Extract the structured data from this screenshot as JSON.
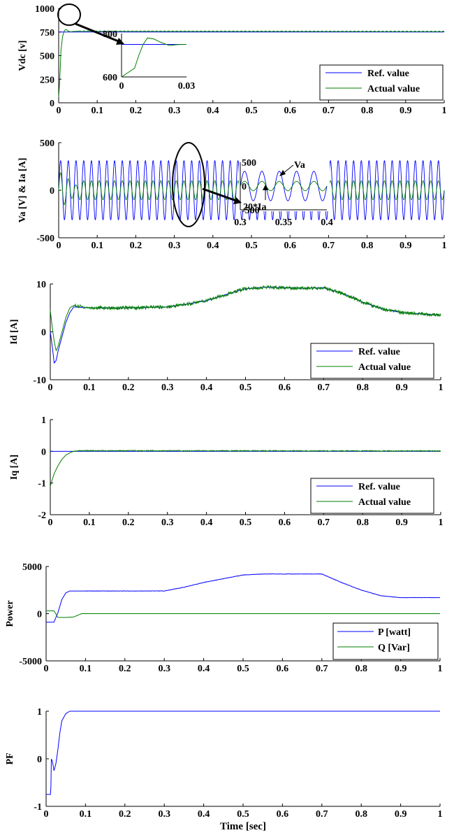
{
  "figure": {
    "xlabel": "Time [sec]",
    "colors": {
      "ref": "#0000ff",
      "actual": "#008000",
      "axis": "#000000"
    }
  },
  "chart_data": [
    {
      "type": "line",
      "ylabel": "Vdc [v]",
      "xlim": [
        0,
        1
      ],
      "ylim": [
        0,
        1000
      ],
      "xticks": [
        "0",
        "0.1",
        "0.2",
        "0.3",
        "0.4",
        "0.5",
        "0.6",
        "0.7",
        "0.8",
        "0.9",
        "1"
      ],
      "yticks": [
        "0",
        "250",
        "500",
        "750",
        "1000"
      ],
      "legend": {
        "position": "bottom-right",
        "entries": [
          "Ref. value",
          "Actual value"
        ]
      },
      "series": [
        {
          "name": "Ref. value",
          "x": [
            0,
            1
          ],
          "y": [
            750,
            750
          ]
        },
        {
          "name": "Actual value",
          "x": [
            0,
            0.003,
            0.006,
            0.01,
            0.015,
            0.02,
            0.025,
            0.03,
            0.04,
            0.05,
            1
          ],
          "y": [
            60,
            250,
            560,
            700,
            770,
            775,
            760,
            752,
            756,
            758,
            755
          ]
        }
      ],
      "inset": {
        "xlim": [
          0,
          0.03
        ],
        "ylim": [
          600,
          800
        ],
        "xticks": [
          "0",
          "0.03"
        ],
        "yticks": [
          "600",
          "800"
        ],
        "ref_y": 750,
        "actual": {
          "x": [
            0,
            0.006,
            0.008,
            0.01,
            0.012,
            0.015,
            0.018,
            0.022,
            0.026,
            0.03
          ],
          "y": [
            600,
            640,
            700,
            750,
            780,
            775,
            760,
            745,
            749,
            750
          ]
        }
      }
    },
    {
      "type": "line",
      "ylabel": "Va [V] & Ia [A]",
      "xlim": [
        0,
        1
      ],
      "ylim": [
        -500,
        500
      ],
      "xticks": [
        "0",
        "0.1",
        "0.2",
        "0.3",
        "0.4",
        "0.5",
        "0.6",
        "0.7",
        "0.8",
        "0.9",
        "1"
      ],
      "yticks": [
        "-500",
        "0",
        "500"
      ],
      "series": [
        {
          "name": "Va",
          "type": "sinusoid",
          "amplitude": 311,
          "frequency_hz": 50
        },
        {
          "name": "20*Ia",
          "type": "sinusoid",
          "amplitude": 100,
          "frequency_hz": 50
        }
      ],
      "inset": {
        "xlim": [
          0.3,
          0.4
        ],
        "ylim": [
          -500,
          500
        ],
        "xticks": [
          "0.3",
          "0.35",
          "0.4"
        ],
        "yticks": [
          "-500",
          "0",
          "500"
        ],
        "annotations": [
          "Va",
          "20*Ia"
        ]
      }
    },
    {
      "type": "line",
      "ylabel": "Id [A]",
      "xlim": [
        0,
        1
      ],
      "ylim": [
        -10,
        10
      ],
      "xticks": [
        "0",
        "0.1",
        "0.2",
        "0.3",
        "0.4",
        "0.5",
        "0.6",
        "0.7",
        "0.8",
        "0.9",
        "1"
      ],
      "yticks": [
        "-10",
        "0",
        "10"
      ],
      "legend": {
        "position": "bottom-right",
        "entries": [
          "Ref. value",
          "Actual value"
        ]
      },
      "series": [
        {
          "name": "Ref. value",
          "x": [
            0,
            0.005,
            0.01,
            0.015,
            0.02,
            0.03,
            0.04,
            0.05,
            0.06,
            0.1,
            0.2,
            0.3,
            0.35,
            0.4,
            0.45,
            0.5,
            0.55,
            0.6,
            0.65,
            0.7,
            0.75,
            0.8,
            0.85,
            0.9,
            1
          ],
          "y": [
            0,
            -3,
            -6.5,
            -6,
            -4,
            -1,
            2,
            4,
            5.2,
            5,
            5,
            5.2,
            5.8,
            6.5,
            7.8,
            9,
            9.3,
            9.2,
            9.1,
            9.2,
            8,
            6.2,
            4.8,
            4,
            3.5
          ]
        },
        {
          "name": "Actual value",
          "x": [
            0,
            0.005,
            0.01,
            0.015,
            0.02,
            0.03,
            0.04,
            0.05,
            0.06,
            0.1,
            0.2,
            0.3,
            0.35,
            0.4,
            0.45,
            0.5,
            0.55,
            0.6,
            0.65,
            0.7,
            0.75,
            0.8,
            0.85,
            0.9,
            1
          ],
          "y": [
            4.5,
            1,
            -2,
            -4,
            -3,
            0,
            3,
            5,
            5.5,
            5,
            5,
            5.2,
            5.8,
            6.5,
            7.8,
            9,
            9.3,
            9.2,
            9.1,
            9.2,
            8,
            6.2,
            4.8,
            4,
            3.5
          ]
        }
      ]
    },
    {
      "type": "line",
      "ylabel": "Iq [A]",
      "xlim": [
        0,
        1
      ],
      "ylim": [
        -2,
        1
      ],
      "xticks": [
        "0",
        "0.1",
        "0.2",
        "0.3",
        "0.4",
        "0.5",
        "0.6",
        "0.7",
        "0.8",
        "0.9",
        "1"
      ],
      "yticks": [
        "-2",
        "-1",
        "0",
        "1"
      ],
      "legend": {
        "position": "bottom-right",
        "entries": [
          "Ref. value",
          "Actual value"
        ]
      },
      "series": [
        {
          "name": "Ref. value",
          "x": [
            0,
            1
          ],
          "y": [
            0,
            0
          ]
        },
        {
          "name": "Actual value",
          "x": [
            0,
            0.005,
            0.01,
            0.02,
            0.03,
            0.04,
            0.05,
            0.06,
            0.08,
            1
          ],
          "y": [
            -1.1,
            -0.9,
            -0.7,
            -0.45,
            -0.25,
            -0.12,
            -0.05,
            0,
            0.02,
            0.01
          ]
        }
      ]
    },
    {
      "type": "line",
      "ylabel": "Power",
      "xlim": [
        0,
        1
      ],
      "ylim": [
        -5000,
        5000
      ],
      "xticks": [
        "0",
        "0.1",
        "0.2",
        "0.3",
        "0.4",
        "0.5",
        "0.6",
        "0.7",
        "0.8",
        "0.9",
        "1"
      ],
      "yticks": [
        "-5000",
        "0",
        "5000"
      ],
      "legend": {
        "position": "bottom-right",
        "entries": [
          "P [watt]",
          "Q [Var]"
        ]
      },
      "series": [
        {
          "name": "P [watt]",
          "x": [
            0,
            0.02,
            0.025,
            0.03,
            0.04,
            0.05,
            0.06,
            0.08,
            0.1,
            0.3,
            0.35,
            0.4,
            0.45,
            0.5,
            0.55,
            0.6,
            0.7,
            0.75,
            0.8,
            0.85,
            0.9,
            1
          ],
          "y": [
            -900,
            -900,
            -400,
            100,
            1500,
            2200,
            2400,
            2400,
            2400,
            2400,
            2800,
            3300,
            3700,
            4100,
            4200,
            4200,
            4200,
            3300,
            2500,
            1900,
            1700,
            1700
          ]
        },
        {
          "name": "Q [Var]",
          "x": [
            0,
            0.02,
            0.03,
            0.05,
            0.07,
            0.09,
            1
          ],
          "y": [
            300,
            300,
            -400,
            -400,
            -350,
            0,
            0
          ]
        }
      ]
    },
    {
      "type": "line",
      "ylabel": "PF",
      "xlabel": "Time [sec]",
      "xlim": [
        0,
        1
      ],
      "ylim": [
        -1,
        1
      ],
      "xticks": [
        "0",
        "0.1",
        "0.2",
        "0.3",
        "0.4",
        "0.5",
        "0.6",
        "0.7",
        "0.8",
        "0.9",
        "1"
      ],
      "yticks": [
        "-1",
        "0",
        "1"
      ],
      "series": [
        {
          "name": "PF",
          "x": [
            0,
            0.012,
            0.013,
            0.016,
            0.02,
            0.025,
            0.03,
            0.035,
            0.04,
            0.05,
            0.06,
            0.07,
            1
          ],
          "y": [
            -0.75,
            -0.75,
            0,
            -0.05,
            -0.25,
            -0.1,
            0.2,
            0.55,
            0.8,
            0.95,
            1,
            1,
            1
          ]
        }
      ]
    }
  ]
}
